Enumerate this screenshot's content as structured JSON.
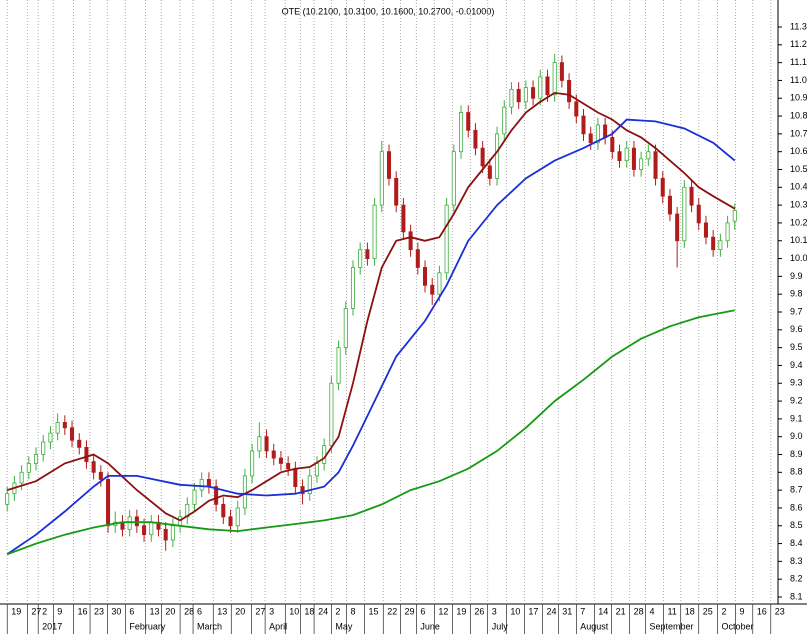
{
  "chart_data": {
    "type": "candlestick",
    "title": "OTE (10.2100, 10.3100, 10.1600, 10.2700, -0.01000)",
    "up_color": "#3fae3f",
    "down_color": "#b01c1c",
    "grid": true,
    "xlim": [
      -1,
      107
    ],
    "ylim": [
      8.1,
      11.3
    ],
    "yticks": [
      8.1,
      8.2,
      8.3,
      8.4,
      8.5,
      8.6,
      8.7,
      8.8,
      8.9,
      {
        "value": 9,
        "label": "9.0"
      },
      9.1,
      9.2,
      9.3,
      9.4,
      9.5,
      9.6,
      9.7,
      9.8,
      9.9,
      {
        "value": 10,
        "label": "10.0"
      },
      10.1,
      10.2,
      10.3,
      10.4,
      10.5,
      10.6,
      10.7,
      10.8,
      10.9,
      {
        "value": 11,
        "label": "11.0"
      },
      11.1,
      11.2,
      11.3
    ],
    "xticks": [
      {
        "value": 0,
        "label": "19"
      },
      {
        "value": 2.8,
        "label": "27"
      },
      {
        "value": 4.3,
        "label": "2"
      },
      {
        "value": 6.4,
        "label": "9"
      },
      {
        "value": 9.2,
        "label": "16"
      },
      {
        "value": 11.5,
        "label": "23"
      },
      {
        "value": 13.9,
        "label": "30"
      },
      {
        "value": 16.4,
        "label": "6"
      },
      {
        "value": 19.2,
        "label": "13"
      },
      {
        "value": 21.4,
        "label": "20"
      },
      {
        "value": 24,
        "label": "28"
      },
      {
        "value": 25.8,
        "label": "6"
      },
      {
        "value": 28.6,
        "label": "13"
      },
      {
        "value": 31.1,
        "label": "20"
      },
      {
        "value": 33.9,
        "label": "27"
      },
      {
        "value": 35.8,
        "label": "3"
      },
      {
        "value": 38.6,
        "label": "10"
      },
      {
        "value": 40.7,
        "label": "18"
      },
      {
        "value": 42.6,
        "label": "24"
      },
      {
        "value": 45,
        "label": "2"
      },
      {
        "value": 47.1,
        "label": "8"
      },
      {
        "value": 49.6,
        "label": "15"
      },
      {
        "value": 52.2,
        "label": "22"
      },
      {
        "value": 54.6,
        "label": "29"
      },
      {
        "value": 56.8,
        "label": "6"
      },
      {
        "value": 59.3,
        "label": "12"
      },
      {
        "value": 61.8,
        "label": "19"
      },
      {
        "value": 64.3,
        "label": "26"
      },
      {
        "value": 66.7,
        "label": "3"
      },
      {
        "value": 69.3,
        "label": "10"
      },
      {
        "value": 71.8,
        "label": "17"
      },
      {
        "value": 74.3,
        "label": "24"
      },
      {
        "value": 76.5,
        "label": "31"
      },
      {
        "value": 79,
        "label": "7"
      },
      {
        "value": 81.5,
        "label": "14"
      },
      {
        "value": 83.9,
        "label": "21"
      },
      {
        "value": 86.4,
        "label": "28"
      },
      {
        "value": 88.6,
        "label": "4"
      },
      {
        "value": 91.1,
        "label": "11"
      },
      {
        "value": 93.5,
        "label": "18"
      },
      {
        "value": 96,
        "label": "25"
      },
      {
        "value": 98.6,
        "label": "2"
      },
      {
        "value": 101.1,
        "label": "9"
      },
      {
        "value": 103.5,
        "label": "16"
      },
      {
        "value": 106,
        "label": "23"
      }
    ],
    "month_labels": [
      {
        "value": 4.3,
        "label": "2017"
      },
      {
        "value": 16.4,
        "label": "February"
      },
      {
        "value": 25.8,
        "label": "March"
      },
      {
        "value": 35.8,
        "label": "April"
      },
      {
        "value": 45,
        "label": "May"
      },
      {
        "value": 56.8,
        "label": "June"
      },
      {
        "value": 66.7,
        "label": "July"
      },
      {
        "value": 79,
        "label": "August"
      },
      {
        "value": 88.6,
        "label": "September"
      },
      {
        "value": 98.6,
        "label": "October"
      }
    ],
    "candles": [
      [
        8.62,
        8.72,
        8.58,
        8.68
      ],
      [
        8.68,
        8.78,
        8.64,
        8.74
      ],
      [
        8.74,
        8.84,
        8.7,
        8.8
      ],
      [
        8.8,
        8.89,
        8.76,
        8.85
      ],
      [
        8.85,
        8.94,
        8.81,
        8.9
      ],
      [
        8.9,
        9.01,
        8.86,
        8.97
      ],
      [
        8.97,
        9.06,
        8.93,
        9.02
      ],
      [
        9.02,
        9.13,
        8.98,
        9.08
      ],
      [
        9.08,
        9.12,
        9.01,
        9.05
      ],
      [
        9.05,
        9.09,
        8.94,
        8.98
      ],
      [
        8.98,
        9.02,
        8.9,
        8.94
      ],
      [
        8.94,
        8.98,
        8.82,
        8.86
      ],
      [
        8.86,
        8.9,
        8.76,
        8.8
      ],
      [
        8.8,
        8.84,
        8.72,
        8.76
      ],
      [
        8.76,
        8.8,
        8.46,
        8.5
      ],
      [
        8.5,
        8.58,
        8.46,
        8.52
      ],
      [
        8.52,
        8.56,
        8.44,
        8.48
      ],
      [
        8.48,
        8.59,
        8.44,
        8.55
      ],
      [
        8.55,
        8.59,
        8.46,
        8.5
      ],
      [
        8.5,
        8.54,
        8.41,
        8.45
      ],
      [
        8.45,
        8.56,
        8.41,
        8.52
      ],
      [
        8.52,
        8.56,
        8.44,
        8.48
      ],
      [
        8.48,
        8.52,
        8.36,
        8.42
      ],
      [
        8.42,
        8.54,
        8.38,
        8.5
      ],
      [
        8.5,
        8.59,
        8.46,
        8.55
      ],
      [
        8.55,
        8.66,
        8.51,
        8.62
      ],
      [
        8.62,
        8.74,
        8.58,
        8.7
      ],
      [
        8.7,
        8.8,
        8.66,
        8.76
      ],
      [
        8.76,
        8.8,
        8.68,
        8.72
      ],
      [
        8.72,
        8.76,
        8.58,
        8.62
      ],
      [
        8.62,
        8.66,
        8.51,
        8.55
      ],
      [
        8.55,
        8.59,
        8.46,
        8.5
      ],
      [
        8.5,
        8.64,
        8.46,
        8.6
      ],
      [
        8.6,
        8.82,
        8.56,
        8.78
      ],
      [
        8.78,
        8.96,
        8.74,
        8.92
      ],
      [
        8.92,
        9.08,
        8.88,
        9.0
      ],
      [
        9.0,
        9.04,
        8.88,
        8.92
      ],
      [
        8.92,
        8.96,
        8.84,
        8.88
      ],
      [
        8.88,
        8.92,
        8.81,
        8.85
      ],
      [
        8.85,
        8.89,
        8.78,
        8.82
      ],
      [
        8.82,
        8.86,
        8.68,
        8.72
      ],
      [
        8.72,
        8.76,
        8.62,
        8.68
      ],
      [
        8.68,
        8.82,
        8.64,
        8.78
      ],
      [
        8.78,
        8.89,
        8.74,
        8.85
      ],
      [
        8.85,
        8.99,
        8.81,
        8.95
      ],
      [
        8.95,
        9.34,
        8.91,
        9.3
      ],
      [
        9.3,
        9.54,
        9.26,
        9.5
      ],
      [
        9.5,
        9.76,
        9.46,
        9.72
      ],
      [
        9.72,
        9.99,
        9.68,
        9.95
      ],
      [
        9.95,
        10.09,
        9.91,
        10.05
      ],
      [
        10.05,
        10.09,
        9.96,
        10.0
      ],
      [
        10.0,
        10.34,
        9.96,
        10.3
      ],
      [
        10.3,
        10.66,
        10.26,
        10.6
      ],
      [
        10.6,
        10.64,
        10.41,
        10.45
      ],
      [
        10.45,
        10.49,
        10.26,
        10.3
      ],
      [
        10.3,
        10.34,
        10.11,
        10.15
      ],
      [
        10.15,
        10.19,
        10.01,
        10.05
      ],
      [
        10.05,
        10.09,
        9.91,
        9.95
      ],
      [
        9.95,
        9.99,
        9.81,
        9.85
      ],
      [
        9.85,
        9.89,
        9.74,
        9.8
      ],
      [
        9.8,
        9.96,
        9.76,
        9.92
      ],
      [
        9.92,
        10.34,
        9.88,
        10.3
      ],
      [
        10.3,
        10.64,
        10.26,
        10.6
      ],
      [
        10.6,
        10.86,
        10.56,
        10.82
      ],
      [
        10.82,
        10.86,
        10.68,
        10.72
      ],
      [
        10.72,
        10.76,
        10.58,
        10.62
      ],
      [
        10.62,
        10.66,
        10.48,
        10.52
      ],
      [
        10.52,
        10.56,
        10.41,
        10.45
      ],
      [
        10.45,
        10.74,
        10.41,
        10.7
      ],
      [
        10.7,
        10.89,
        10.66,
        10.85
      ],
      [
        10.85,
        10.99,
        10.81,
        10.95
      ],
      [
        10.95,
        10.99,
        10.84,
        10.88
      ],
      [
        10.88,
        11.0,
        10.84,
        10.96
      ],
      [
        10.96,
        11.0,
        10.86,
        10.9
      ],
      [
        10.9,
        11.06,
        10.86,
        11.02
      ],
      [
        11.02,
        11.06,
        10.88,
        10.92
      ],
      [
        10.92,
        11.15,
        10.88,
        11.1
      ],
      [
        11.1,
        11.14,
        10.96,
        11.0
      ],
      [
        11.0,
        11.04,
        10.84,
        10.88
      ],
      [
        10.88,
        10.92,
        10.76,
        10.8
      ],
      [
        10.8,
        10.84,
        10.66,
        10.7
      ],
      [
        10.7,
        10.74,
        10.61,
        10.65
      ],
      [
        10.65,
        10.79,
        10.61,
        10.75
      ],
      [
        10.75,
        10.79,
        10.64,
        10.68
      ],
      [
        10.68,
        10.72,
        10.56,
        10.6
      ],
      [
        10.6,
        10.64,
        10.51,
        10.55
      ],
      [
        10.55,
        10.66,
        10.51,
        10.62
      ],
      [
        10.62,
        10.66,
        10.46,
        10.5
      ],
      [
        10.5,
        10.6,
        10.46,
        10.56
      ],
      [
        10.56,
        10.64,
        10.52,
        10.6
      ],
      [
        10.6,
        10.64,
        10.41,
        10.45
      ],
      [
        10.45,
        10.49,
        10.31,
        10.35
      ],
      [
        10.35,
        10.39,
        10.21,
        10.25
      ],
      [
        10.25,
        10.29,
        9.95,
        10.1
      ],
      [
        10.1,
        10.44,
        10.06,
        10.4
      ],
      [
        10.4,
        10.44,
        10.26,
        10.3
      ],
      [
        10.3,
        10.34,
        10.16,
        10.2
      ],
      [
        10.2,
        10.24,
        10.08,
        10.12
      ],
      [
        10.12,
        10.16,
        10.01,
        10.05
      ],
      [
        10.05,
        10.14,
        10.01,
        10.1
      ],
      [
        10.1,
        10.24,
        10.06,
        10.2
      ],
      [
        10.21,
        10.31,
        10.16,
        10.27
      ]
    ],
    "lines": [
      {
        "color": "#8b1010",
        "x": [
          0,
          4,
          8,
          12,
          14,
          18,
          22,
          24,
          26,
          28,
          30,
          32,
          34,
          38,
          40,
          42,
          44,
          46,
          48,
          50,
          52,
          54,
          56,
          58,
          60,
          62,
          64,
          66,
          68,
          70,
          72,
          74,
          76,
          78,
          80,
          82,
          84,
          86,
          88,
          90,
          92,
          94,
          96,
          98,
          101
        ],
        "values": [
          8.7,
          8.75,
          8.85,
          8.9,
          8.85,
          8.7,
          8.57,
          8.53,
          8.58,
          8.64,
          8.67,
          8.66,
          8.7,
          8.8,
          8.82,
          8.83,
          8.88,
          9.0,
          9.3,
          9.65,
          9.95,
          10.1,
          10.12,
          10.1,
          10.12,
          10.25,
          10.4,
          10.5,
          10.6,
          10.72,
          10.82,
          10.88,
          10.93,
          10.92,
          10.87,
          10.82,
          10.78,
          10.72,
          10.68,
          10.62,
          10.55,
          10.48,
          10.4,
          10.35,
          10.28
        ]
      },
      {
        "color": "#1a2fd6",
        "x": [
          0,
          4,
          8,
          12,
          14,
          18,
          24,
          28,
          32,
          36,
          40,
          44,
          46,
          48,
          51,
          54,
          58,
          61,
          64,
          68,
          72,
          76,
          80,
          84,
          86,
          90,
          94,
          98,
          101
        ],
        "values": [
          8.34,
          8.45,
          8.58,
          8.72,
          8.78,
          8.78,
          8.73,
          8.72,
          8.68,
          8.67,
          8.68,
          8.72,
          8.8,
          8.95,
          9.2,
          9.45,
          9.65,
          9.85,
          10.1,
          10.3,
          10.45,
          10.55,
          10.62,
          10.7,
          10.78,
          10.77,
          10.73,
          10.65,
          10.55
        ]
      },
      {
        "color": "#169a16",
        "x": [
          0,
          4,
          8,
          12,
          16,
          20,
          24,
          28,
          32,
          36,
          40,
          44,
          48,
          52,
          56,
          60,
          64,
          68,
          72,
          76,
          80,
          84,
          88,
          92,
          96,
          101
        ],
        "values": [
          8.34,
          8.4,
          8.45,
          8.49,
          8.52,
          8.52,
          8.5,
          8.48,
          8.47,
          8.49,
          8.51,
          8.53,
          8.56,
          8.62,
          8.7,
          8.75,
          8.82,
          8.92,
          9.05,
          9.2,
          9.32,
          9.45,
          9.55,
          9.62,
          9.67,
          9.71
        ]
      }
    ]
  }
}
